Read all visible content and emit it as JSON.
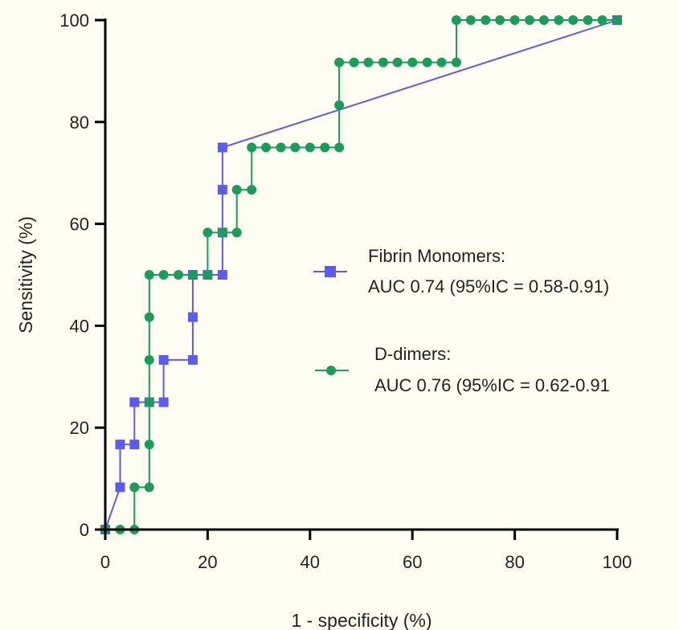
{
  "chart_data": {
    "type": "line",
    "xlabel": "1 - specificity (%)",
    "ylabel": "Sensitivity (%)",
    "xlim": [
      0,
      100
    ],
    "ylim": [
      0,
      100
    ],
    "x_ticks": [
      "0",
      "20",
      "40",
      "60",
      "80",
      "100"
    ],
    "y_ticks": [
      "0",
      "20",
      "40",
      "60",
      "80",
      "100"
    ],
    "grid": false,
    "legend_position": "right",
    "series": [
      {
        "name": "Fibrin Monomers:",
        "annotation": "AUC 0.74 (95%IC = 0.58-0.91)",
        "marker": "square",
        "color": "#5b5bf0",
        "points": [
          [
            0,
            0
          ],
          [
            2.9,
            8.3
          ],
          [
            2.9,
            16.7
          ],
          [
            5.7,
            16.7
          ],
          [
            5.7,
            25
          ],
          [
            8.6,
            25
          ],
          [
            11.4,
            25
          ],
          [
            11.4,
            33.3
          ],
          [
            17.1,
            33.3
          ],
          [
            17.1,
            41.7
          ],
          [
            17.1,
            50
          ],
          [
            20,
            50
          ],
          [
            22.9,
            50
          ],
          [
            22.9,
            58.3
          ],
          [
            22.9,
            66.7
          ],
          [
            22.9,
            75
          ],
          [
            100,
            100
          ]
        ]
      },
      {
        "name": "D-dimers:",
        "annotation": "AUC 0.76 (95%IC = 0.62-0.91",
        "marker": "circle",
        "color": "#1a9c5b",
        "points": [
          [
            0,
            0
          ],
          [
            2.9,
            0
          ],
          [
            5.7,
            0
          ],
          [
            5.7,
            8.3
          ],
          [
            8.6,
            8.3
          ],
          [
            8.6,
            16.7
          ],
          [
            8.6,
            25
          ],
          [
            8.6,
            33.3
          ],
          [
            8.6,
            41.7
          ],
          [
            8.6,
            50
          ],
          [
            11.4,
            50
          ],
          [
            14.3,
            50
          ],
          [
            17.1,
            50
          ],
          [
            20,
            50
          ],
          [
            20,
            58.3
          ],
          [
            22.9,
            58.3
          ],
          [
            25.7,
            58.3
          ],
          [
            25.7,
            66.7
          ],
          [
            28.6,
            66.7
          ],
          [
            28.6,
            75
          ],
          [
            31.4,
            75
          ],
          [
            34.3,
            75
          ],
          [
            37.1,
            75
          ],
          [
            40,
            75
          ],
          [
            42.9,
            75
          ],
          [
            45.7,
            75
          ],
          [
            45.7,
            83.3
          ],
          [
            45.7,
            91.7
          ],
          [
            48.6,
            91.7
          ],
          [
            51.4,
            91.7
          ],
          [
            54.3,
            91.7
          ],
          [
            57.1,
            91.7
          ],
          [
            60,
            91.7
          ],
          [
            62.9,
            91.7
          ],
          [
            65.7,
            91.7
          ],
          [
            68.6,
            91.7
          ],
          [
            68.6,
            100
          ],
          [
            71.4,
            100
          ],
          [
            74.3,
            100
          ],
          [
            77.1,
            100
          ],
          [
            80,
            100
          ],
          [
            82.9,
            100
          ],
          [
            85.7,
            100
          ],
          [
            88.6,
            100
          ],
          [
            91.4,
            100
          ],
          [
            94.3,
            100
          ],
          [
            97.1,
            100
          ],
          [
            100,
            100
          ]
        ]
      }
    ]
  }
}
